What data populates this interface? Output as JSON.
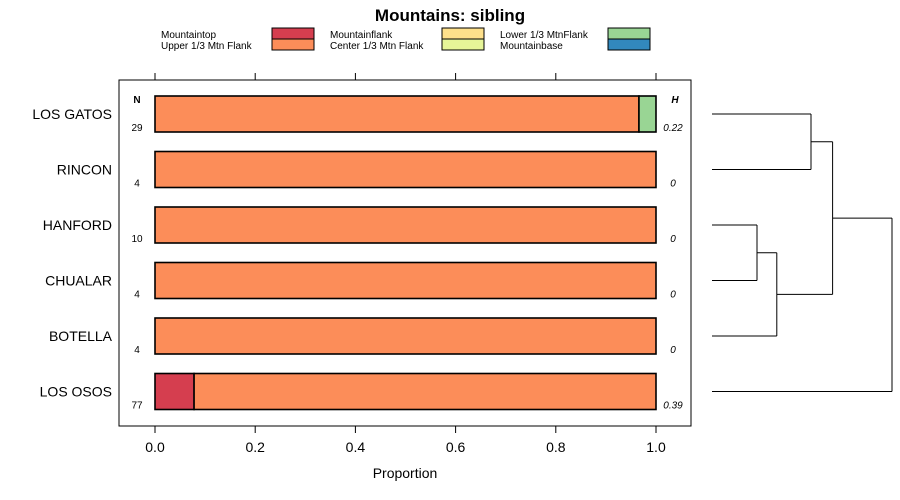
{
  "chart_data": {
    "type": "bar",
    "orientation": "horizontal",
    "stacked": true,
    "title": "Mountains: sibling",
    "xlabel": "Proportion",
    "ylabel": "",
    "xlim": [
      0,
      1
    ],
    "x_ticks": [
      "0.0",
      "0.2",
      "0.4",
      "0.6",
      "0.8",
      "1.0"
    ],
    "categories": [
      "LOS GATOS",
      "RINCON",
      "HANFORD",
      "CHUALAR",
      "BOTELLA",
      "LOS OSOS"
    ],
    "n_header": "N",
    "h_header": "H",
    "n_values": [
      "29",
      "4",
      "10",
      "4",
      "4",
      "77"
    ],
    "h_values": [
      "0.22",
      "0",
      "0",
      "0",
      "0",
      "0.39"
    ],
    "legend": [
      {
        "name": "Mountaintop",
        "color": "#d53e4f"
      },
      {
        "name": "Upper 1/3 Mtn Flank",
        "color": "#fc8d59"
      },
      {
        "name": "Mountainflank",
        "color": "#fee08b"
      },
      {
        "name": "Center 1/3 Mtn Flank",
        "color": "#e6f598"
      },
      {
        "name": "Lower 1/3 MtnFlank",
        "color": "#99d594"
      },
      {
        "name": "Mountainbase",
        "color": "#3288bd"
      }
    ],
    "series": [
      {
        "name": "Mountaintop",
        "values": [
          0,
          0,
          0,
          0,
          0,
          0.078
        ]
      },
      {
        "name": "Upper 1/3 Mtn Flank",
        "values": [
          0.966,
          1,
          1,
          1,
          1,
          0.922
        ]
      },
      {
        "name": "Mountainflank",
        "values": [
          0,
          0,
          0,
          0,
          0,
          0
        ]
      },
      {
        "name": "Center 1/3 Mtn Flank",
        "values": [
          0,
          0,
          0,
          0,
          0,
          0
        ]
      },
      {
        "name": "Lower 1/3 MtnFlank",
        "values": [
          0.034,
          0,
          0,
          0,
          0,
          0
        ]
      },
      {
        "name": "Mountainbase",
        "values": [
          0,
          0,
          0,
          0,
          0,
          0
        ]
      }
    ],
    "dendrogram": {
      "description": "hierarchical clustering of rows",
      "merges": [
        {
          "id": "A",
          "left": "LOS GATOS",
          "right": "RINCON",
          "height": 0.55
        },
        {
          "id": "B",
          "left": "HANFORD",
          "right": "CHUALAR",
          "height": 0.25
        },
        {
          "id": "C",
          "left": "B",
          "right": "BOTELLA",
          "height": 0.36
        },
        {
          "id": "D",
          "left": "A",
          "right": "C",
          "height": 0.67
        },
        {
          "id": "E",
          "left": "D",
          "right": "LOS OSOS",
          "height": 1.0
        }
      ]
    }
  }
}
